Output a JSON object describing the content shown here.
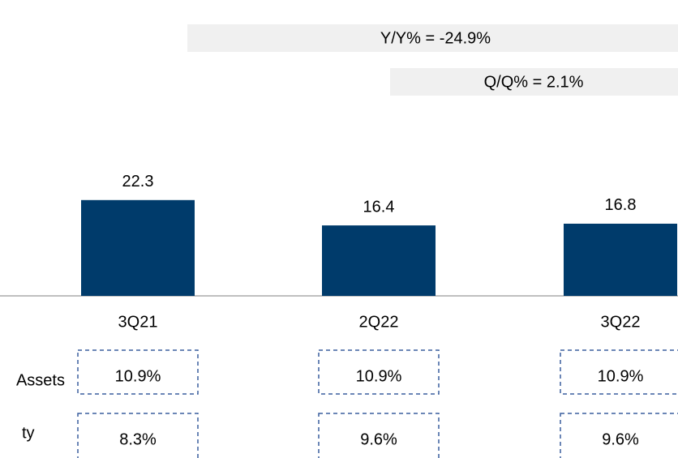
{
  "chart_data": {
    "type": "bar",
    "annotations": [
      "Y/Y% = -24.9%",
      "Q/Q% = 2.1%"
    ],
    "categories": [
      "3Q21",
      "2Q22",
      "3Q22"
    ],
    "values": [
      22.3,
      16.4,
      16.8
    ],
    "color": "#003b6b",
    "ylim": [
      0,
      30
    ],
    "rows": [
      {
        "label": "Assets",
        "cells": [
          "10.9%",
          "10.9%",
          "10.9%"
        ]
      },
      {
        "label": "ty",
        "cells": [
          "8.3%",
          "9.6%",
          "9.6%"
        ]
      }
    ]
  }
}
